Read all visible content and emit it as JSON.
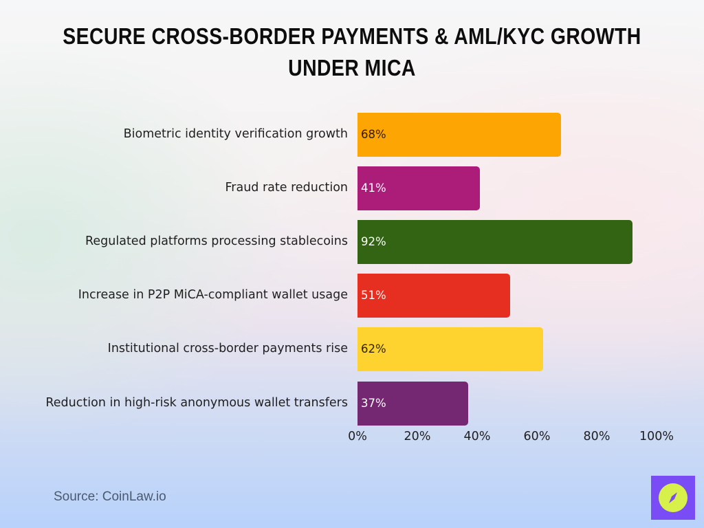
{
  "chart_data": {
    "type": "bar",
    "orientation": "horizontal",
    "title": "Secure Cross-Border Payments & AML/KYC Growth under MiCA",
    "categories": [
      "Biometric identity verification growth",
      "Fraud rate reduction",
      "Regulated platforms processing stablecoins",
      "Increase in P2P MiCA-compliant wallet usage",
      "Institutional cross-border payments rise",
      "Reduction in high-risk anonymous wallet transfers"
    ],
    "values": [
      68,
      41,
      92,
      51,
      62,
      37
    ],
    "value_labels": [
      "68%",
      "41%",
      "92%",
      "51%",
      "62%",
      "37%"
    ],
    "colors": [
      "#fca503",
      "#ac1d7a",
      "#336414",
      "#e62e21",
      "#fed22f",
      "#732871"
    ],
    "label_colors": [
      "#2a1a00",
      "#ffffff",
      "#ffffff",
      "#ffffff",
      "#2a2200",
      "#ffffff"
    ],
    "xlabel": "",
    "ylabel": "",
    "xlim": [
      0,
      100
    ],
    "x_ticks": [
      "0%",
      "20%",
      "40%",
      "60%",
      "80%",
      "100%"
    ],
    "grid": false,
    "legend": "none"
  },
  "footer": {
    "source": "Source: CoinLaw.io",
    "logo": "compass-icon"
  }
}
